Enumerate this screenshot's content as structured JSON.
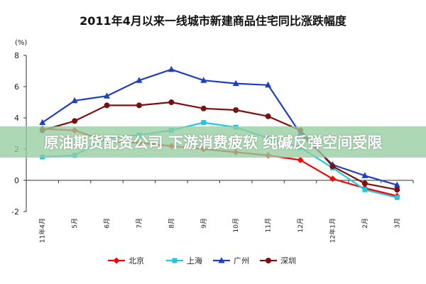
{
  "chart_data": {
    "type": "line",
    "title": "2011年4月以来一线城市新建商品住宅同比涨跌幅度",
    "unit_label": "(%)",
    "ylim": [
      -2,
      8
    ],
    "yticks": [
      "-2",
      "0",
      "2",
      "4",
      "6",
      "8"
    ],
    "categories": [
      "11年4月",
      "5月",
      "6月",
      "7月",
      "8月",
      "9月",
      "10月",
      "11月",
      "12月",
      "12年1月",
      "2月",
      "3月"
    ],
    "grid": false,
    "legend_position": "bottom",
    "series": [
      {
        "name": "北京",
        "color": "#ff0000",
        "marker": "diamond",
        "values": [
          3.3,
          3.2,
          2.5,
          2.4,
          2.2,
          2.0,
          1.8,
          1.6,
          1.3,
          0.1,
          -0.5,
          -1.0
        ]
      },
      {
        "name": "上海",
        "color": "#1ec8e0",
        "marker": "square",
        "values": [
          1.5,
          1.6,
          2.7,
          2.9,
          3.2,
          3.7,
          3.4,
          2.7,
          2.1,
          0.8,
          -0.6,
          -1.1
        ]
      },
      {
        "name": "广州",
        "color": "#1f3fbf",
        "marker": "triangle",
        "values": [
          3.7,
          5.1,
          5.4,
          6.4,
          7.1,
          6.4,
          6.2,
          6.1,
          3.0,
          1.0,
          0.3,
          -0.3
        ]
      },
      {
        "name": "深圳",
        "color": "#7a1010",
        "marker": "circle",
        "values": [
          3.2,
          3.8,
          4.8,
          4.8,
          5.0,
          4.6,
          4.5,
          4.1,
          3.2,
          0.9,
          -0.2,
          -0.6
        ]
      }
    ]
  },
  "watermark_text": "原油期货配资公司 下游消费疲软 纯碱反弹空间受限"
}
